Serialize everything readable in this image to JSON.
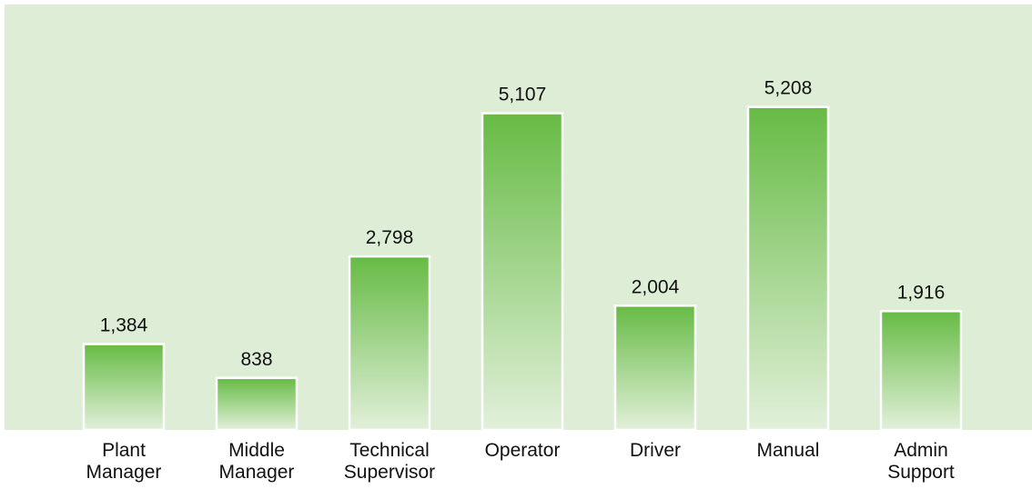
{
  "chart_data": {
    "type": "bar",
    "categories": [
      "Plant Manager",
      "Middle Manager",
      "Technical Supervisor",
      "Operator",
      "Driver",
      "Manual",
      "Admin Support"
    ],
    "values": [
      1384,
      838,
      2798,
      5107,
      2004,
      5208,
      1916
    ],
    "value_labels": [
      "1,384",
      "838",
      "2,798",
      "5,107",
      "2,004",
      "5,208",
      "1,916"
    ],
    "color": "#66bb44",
    "ylim": [
      0,
      6860
    ]
  }
}
